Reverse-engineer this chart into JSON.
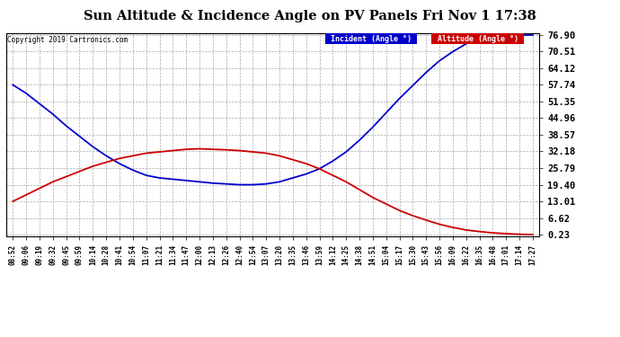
{
  "title": "Sun Altitude & Incidence Angle on PV Panels Fri Nov 1 17:38",
  "copyright": "Copyright 2019 Cartronics.com",
  "legend_incident": "Incident (Angle °)",
  "legend_altitude": "Altitude (Angle °)",
  "yticks": [
    0.23,
    6.62,
    13.01,
    19.4,
    25.79,
    32.18,
    38.57,
    44.96,
    51.35,
    57.74,
    64.12,
    70.51,
    76.9
  ],
  "ymin": 0.23,
  "ymax": 76.9,
  "background_color": "#ffffff",
  "grid_color": "#aaaaaa",
  "incident_color": "#0000cc",
  "altitude_color": "#cc0000",
  "x_labels": [
    "08:52",
    "09:06",
    "09:19",
    "09:32",
    "09:45",
    "09:59",
    "10:14",
    "10:28",
    "10:41",
    "10:54",
    "11:07",
    "11:21",
    "11:34",
    "11:47",
    "12:00",
    "12:13",
    "12:26",
    "12:40",
    "12:54",
    "13:07",
    "13:20",
    "13:35",
    "13:46",
    "13:59",
    "14:12",
    "14:25",
    "14:38",
    "14:51",
    "15:04",
    "15:17",
    "15:30",
    "15:43",
    "15:56",
    "16:09",
    "16:22",
    "16:35",
    "16:48",
    "17:01",
    "17:14",
    "17:27"
  ],
  "incident_values": [
    57.74,
    54.5,
    50.5,
    46.5,
    42.0,
    38.0,
    34.0,
    30.5,
    27.5,
    25.0,
    23.0,
    22.0,
    21.5,
    21.0,
    20.5,
    20.0,
    19.7,
    19.4,
    19.4,
    19.7,
    20.5,
    22.0,
    23.5,
    25.5,
    28.5,
    32.0,
    36.5,
    41.5,
    47.0,
    52.5,
    57.5,
    62.5,
    67.0,
    70.5,
    73.5,
    75.5,
    76.2,
    76.6,
    76.8,
    76.9
  ],
  "altitude_values": [
    13.01,
    15.5,
    18.0,
    20.5,
    22.5,
    24.5,
    26.5,
    28.0,
    29.5,
    30.5,
    31.5,
    32.0,
    32.5,
    33.0,
    33.2,
    33.0,
    32.8,
    32.5,
    32.0,
    31.5,
    30.5,
    29.0,
    27.5,
    25.5,
    23.0,
    20.5,
    17.5,
    14.5,
    12.0,
    9.5,
    7.5,
    5.8,
    4.2,
    3.0,
    2.0,
    1.4,
    0.9,
    0.6,
    0.35,
    0.23
  ]
}
